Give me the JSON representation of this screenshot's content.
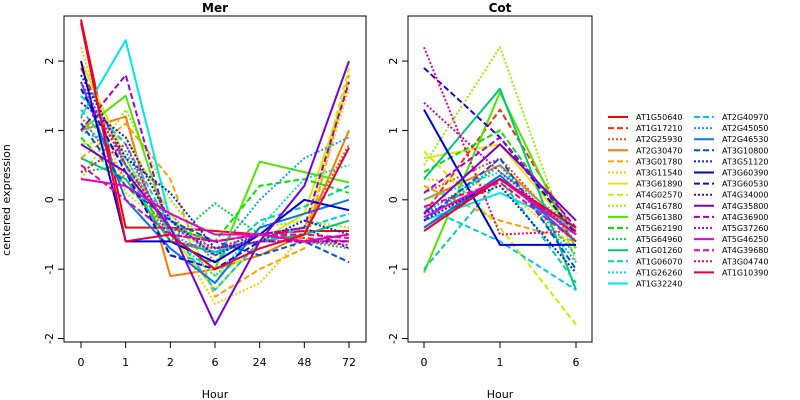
{
  "figure": {
    "ylabel": "centered expression"
  },
  "chart_data": [
    {
      "type": "line",
      "title": "Mer",
      "xlabel": "Hour",
      "ylabel": "centered expression",
      "categories": [
        "0",
        "1",
        "2",
        "6",
        "24",
        "48",
        "72"
      ],
      "ylim": [
        -2.05,
        2.65
      ],
      "yticks": [
        -2,
        -1,
        0,
        1,
        2
      ],
      "grid": false,
      "series": [
        {
          "name": "AT1G50640",
          "color": "#FF0000",
          "dash": "solid",
          "values": [
            2.6,
            -0.4,
            -0.4,
            -0.45,
            -0.5,
            -0.45,
            -0.45
          ]
        },
        {
          "name": "AT1G17210",
          "color": "#FF2A00",
          "dash": "dashed",
          "values": [
            1.9,
            0.5,
            -0.4,
            -0.6,
            -0.5,
            -0.55,
            -0.6
          ]
        },
        {
          "name": "AT2G25930",
          "color": "#FF5000",
          "dash": "dotted",
          "values": [
            1.2,
            0.3,
            -0.2,
            -0.9,
            -0.5,
            -0.4,
            0.8
          ]
        },
        {
          "name": "AT2G30470",
          "color": "#FF7800",
          "dash": "solid",
          "values": [
            1.0,
            1.2,
            -1.1,
            -1.0,
            -0.8,
            -0.5,
            1.0
          ]
        },
        {
          "name": "AT3G01780",
          "color": "#FFA000",
          "dash": "dashed",
          "values": [
            0.6,
            1.1,
            0.3,
            -1.4,
            -1.0,
            -0.7,
            1.8
          ]
        },
        {
          "name": "AT3G11540",
          "color": "#FFC800",
          "dash": "dotted",
          "values": [
            2.2,
            0.1,
            -0.4,
            -1.5,
            -1.2,
            -0.5,
            1.6
          ]
        },
        {
          "name": "AT3G61890",
          "color": "#E6E600",
          "dash": "solid",
          "values": [
            2.0,
            0.6,
            -0.5,
            -1.3,
            -0.6,
            -0.2,
            1.7
          ]
        },
        {
          "name": "AT4G02570",
          "color": "#C8F000",
          "dash": "dashed",
          "values": [
            0.8,
            0.9,
            -0.2,
            -1.1,
            -0.7,
            -0.5,
            1.9
          ]
        },
        {
          "name": "AT4G16780",
          "color": "#96F000",
          "dash": "dotted",
          "values": [
            0.3,
            1.3,
            0.0,
            -0.8,
            -0.4,
            -0.3,
            -0.4
          ]
        },
        {
          "name": "AT5G61380",
          "color": "#50E600",
          "dash": "solid",
          "values": [
            1.0,
            1.5,
            -0.5,
            -1.0,
            0.55,
            0.4,
            0.25
          ]
        },
        {
          "name": "AT5G62190",
          "color": "#00E600",
          "dash": "dashed",
          "values": [
            0.9,
            0.2,
            -0.4,
            -0.6,
            0.2,
            0.3,
            0.1
          ]
        },
        {
          "name": "AT5G64960",
          "color": "#00D246",
          "dash": "dotted",
          "values": [
            0.4,
            0.5,
            -0.6,
            -0.05,
            -0.5,
            -0.6,
            -0.7
          ]
        },
        {
          "name": "AT1G01260",
          "color": "#00C878",
          "dash": "solid",
          "values": [
            0.6,
            0.3,
            -0.6,
            -0.75,
            -0.6,
            -0.5,
            -0.3
          ]
        },
        {
          "name": "AT1G06070",
          "color": "#00D2A0",
          "dash": "dashed",
          "values": [
            1.3,
            0.5,
            -0.8,
            -0.9,
            -0.3,
            -0.1,
            0.2
          ]
        },
        {
          "name": "AT1G26260",
          "color": "#00E1C8",
          "dash": "dotted",
          "values": [
            1.1,
            0.6,
            -0.5,
            -1.1,
            -0.4,
            0.3,
            0.5
          ]
        },
        {
          "name": "AT1G32240",
          "color": "#00E6E6",
          "dash": "solid",
          "values": [
            1.2,
            2.3,
            -0.3,
            -0.8,
            -0.5,
            -0.6,
            -0.5
          ]
        },
        {
          "name": "AT2G40970",
          "color": "#00C8F0",
          "dash": "dashed",
          "values": [
            1.5,
            0.8,
            -0.4,
            -1.3,
            -0.6,
            -0.4,
            -0.2
          ]
        },
        {
          "name": "AT2G45050",
          "color": "#00AAF0",
          "dash": "dotted",
          "values": [
            1.0,
            0.7,
            -0.5,
            -0.8,
            0.0,
            0.6,
            0.9
          ]
        },
        {
          "name": "AT2G46530",
          "color": "#0078F0",
          "dash": "solid",
          "values": [
            1.7,
            0.0,
            -0.7,
            -1.2,
            -0.4,
            -0.2,
            0.0
          ]
        },
        {
          "name": "AT3G10800",
          "color": "#0050E6",
          "dash": "dashed",
          "values": [
            1.1,
            0.2,
            -0.3,
            -0.6,
            -0.8,
            -0.6,
            -0.9
          ]
        },
        {
          "name": "AT3G51120",
          "color": "#0028DC",
          "dash": "dotted",
          "values": [
            1.8,
            0.6,
            0.1,
            -0.7,
            -0.6,
            -0.3,
            -0.5
          ]
        },
        {
          "name": "AT3G60390",
          "color": "#0000D2",
          "dash": "solid",
          "values": [
            2.0,
            -0.6,
            -0.6,
            -0.9,
            -0.5,
            0.0,
            -0.15
          ]
        },
        {
          "name": "AT3G60530",
          "color": "#2800D2",
          "dash": "dashed",
          "values": [
            1.6,
            0.4,
            -0.8,
            -1.0,
            -0.6,
            -0.6,
            -0.6
          ]
        },
        {
          "name": "AT4G34000",
          "color": "#5000D2",
          "dash": "dotted",
          "values": [
            1.4,
            0.9,
            -0.3,
            -0.8,
            -0.5,
            -0.4,
            -0.7
          ]
        },
        {
          "name": "AT4G35800",
          "color": "#7800D2",
          "dash": "solid",
          "values": [
            0.8,
            0.4,
            -0.4,
            -1.8,
            -0.6,
            0.2,
            2.0
          ]
        },
        {
          "name": "AT4G36900",
          "color": "#A000D2",
          "dash": "dashed",
          "values": [
            1.0,
            1.8,
            -0.5,
            -0.6,
            -0.5,
            -0.4,
            1.7
          ]
        },
        {
          "name": "AT5G37260",
          "color": "#C800D2",
          "dash": "dotted",
          "values": [
            1.7,
            0.5,
            -0.4,
            -0.7,
            -0.5,
            -0.6,
            -0.6
          ]
        },
        {
          "name": "AT5G46250",
          "color": "#E600C8",
          "dash": "solid",
          "values": [
            0.3,
            0.2,
            -0.2,
            -0.5,
            -0.5,
            -0.6,
            -0.5
          ]
        },
        {
          "name": "AT4G39680",
          "color": "#F000A0",
          "dash": "dashed",
          "values": [
            0.5,
            0.0,
            -0.5,
            -0.6,
            -0.5,
            -0.5,
            -0.55
          ]
        },
        {
          "name": "AT3G04740",
          "color": "#F00078",
          "dash": "dotted",
          "values": [
            0.4,
            0.8,
            -0.6,
            -0.7,
            -0.6,
            -0.6,
            -0.65
          ]
        },
        {
          "name": "AT1G10390",
          "color": "#E6003C",
          "dash": "solid",
          "values": [
            2.55,
            -0.6,
            -0.5,
            -1.0,
            -0.7,
            -0.5,
            0.75
          ]
        }
      ]
    },
    {
      "type": "line",
      "title": "Cot",
      "xlabel": "Hour",
      "ylabel": "",
      "categories": [
        "0",
        "1",
        "6"
      ],
      "ylim": [
        -2.05,
        2.65
      ],
      "yticks": [
        -2,
        -1,
        0,
        1,
        2
      ],
      "grid": false,
      "series": [
        {
          "name": "AT1G50640",
          "color": "#FF0000",
          "dash": "solid",
          "values": [
            -0.4,
            0.3,
            -0.45
          ]
        },
        {
          "name": "AT1G17210",
          "color": "#FF2A00",
          "dash": "dashed",
          "values": [
            -0.2,
            1.3,
            -0.5
          ]
        },
        {
          "name": "AT2G25930",
          "color": "#FF5000",
          "dash": "dotted",
          "values": [
            0.1,
            0.6,
            -0.6
          ]
        },
        {
          "name": "AT2G30470",
          "color": "#FF7800",
          "dash": "solid",
          "values": [
            0.0,
            0.5,
            -0.5
          ]
        },
        {
          "name": "AT3G01780",
          "color": "#FFA000",
          "dash": "dashed",
          "values": [
            0.2,
            -0.3,
            -0.6
          ]
        },
        {
          "name": "AT3G11540",
          "color": "#FFC800",
          "dash": "dotted",
          "values": [
            0.3,
            0.2,
            -0.7
          ]
        },
        {
          "name": "AT3G61890",
          "color": "#E6E600",
          "dash": "solid",
          "values": [
            0.6,
            0.8,
            -0.5
          ]
        },
        {
          "name": "AT4G02570",
          "color": "#C8F000",
          "dash": "dashed",
          "values": [
            0.7,
            -0.4,
            -1.8
          ]
        },
        {
          "name": "AT4G16780",
          "color": "#96F000",
          "dash": "dotted",
          "values": [
            0.5,
            2.2,
            -0.9
          ]
        },
        {
          "name": "AT5G61380",
          "color": "#50E600",
          "dash": "solid",
          "values": [
            -1.05,
            1.55,
            -0.7
          ]
        },
        {
          "name": "AT5G62190",
          "color": "#00E600",
          "dash": "dashed",
          "values": [
            0.4,
            1.0,
            -0.5
          ]
        },
        {
          "name": "AT5G64960",
          "color": "#00D246",
          "dash": "dotted",
          "values": [
            -0.3,
            0.5,
            -0.8
          ]
        },
        {
          "name": "AT1G01260",
          "color": "#00C878",
          "dash": "solid",
          "values": [
            0.3,
            1.6,
            -1.3
          ]
        },
        {
          "name": "AT1G06070",
          "color": "#00D2A0",
          "dash": "dashed",
          "values": [
            -1.0,
            0.3,
            -1.2
          ]
        },
        {
          "name": "AT1G26260",
          "color": "#00E1C8",
          "dash": "dotted",
          "values": [
            0.0,
            0.4,
            -0.4
          ]
        },
        {
          "name": "AT1G32240",
          "color": "#00E6E6",
          "dash": "solid",
          "values": [
            -0.3,
            0.1,
            -0.4
          ]
        },
        {
          "name": "AT2G40970",
          "color": "#00C8F0",
          "dash": "dashed",
          "values": [
            -0.1,
            -0.6,
            -1.3
          ]
        },
        {
          "name": "AT2G45050",
          "color": "#00AAF0",
          "dash": "dotted",
          "values": [
            -0.2,
            0.5,
            -0.9
          ]
        },
        {
          "name": "AT2G46530",
          "color": "#0078F0",
          "dash": "solid",
          "values": [
            -0.4,
            0.35,
            -0.6
          ]
        },
        {
          "name": "AT3G10800",
          "color": "#0050E6",
          "dash": "dashed",
          "values": [
            -0.3,
            0.6,
            -1.0
          ]
        },
        {
          "name": "AT3G51120",
          "color": "#0028DC",
          "dash": "dotted",
          "values": [
            -0.2,
            0.2,
            -1.05
          ]
        },
        {
          "name": "AT3G60390",
          "color": "#0000D2",
          "dash": "solid",
          "values": [
            1.3,
            -0.65,
            -0.65
          ]
        },
        {
          "name": "AT3G60530",
          "color": "#2800D2",
          "dash": "dashed",
          "values": [
            1.9,
            0.9,
            -0.5
          ]
        },
        {
          "name": "AT4G34000",
          "color": "#5000D2",
          "dash": "dotted",
          "values": [
            -0.3,
            0.3,
            -0.5
          ]
        },
        {
          "name": "AT4G35800",
          "color": "#7800D2",
          "dash": "solid",
          "values": [
            -0.2,
            0.8,
            -0.3
          ]
        },
        {
          "name": "AT4G36900",
          "color": "#A000D2",
          "dash": "dashed",
          "values": [
            0.1,
            0.9,
            -0.4
          ]
        },
        {
          "name": "AT5G37260",
          "color": "#C800D2",
          "dash": "dotted",
          "values": [
            1.4,
            0.4,
            -0.5
          ]
        },
        {
          "name": "AT5G46250",
          "color": "#E600C8",
          "dash": "solid",
          "values": [
            -0.25,
            0.3,
            -0.5
          ]
        },
        {
          "name": "AT4G39680",
          "color": "#F000A0",
          "dash": "dashed",
          "values": [
            -0.1,
            0.25,
            -0.6
          ]
        },
        {
          "name": "AT3G04740",
          "color": "#F00078",
          "dash": "dotted",
          "values": [
            2.2,
            -0.5,
            -0.45
          ]
        },
        {
          "name": "AT1G10390",
          "color": "#E6003C",
          "dash": "solid",
          "values": [
            -0.45,
            0.3,
            -0.4
          ]
        }
      ]
    }
  ]
}
